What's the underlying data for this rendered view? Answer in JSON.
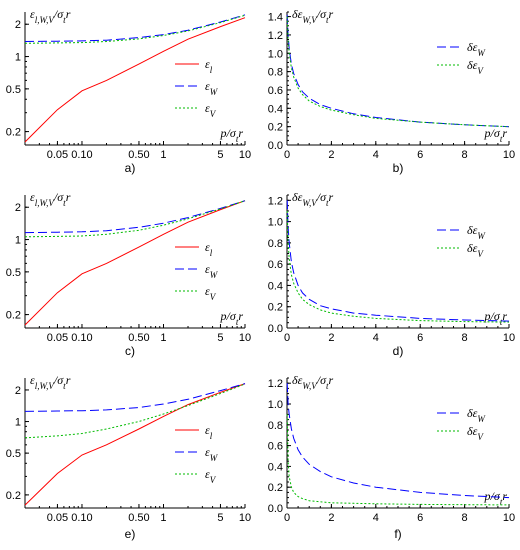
{
  "colors": {
    "eps_l": "#ff0000",
    "eps_W": "#0000ff",
    "eps_V": "#00bb00"
  },
  "chart_data": [
    {
      "panel": "a)",
      "type": "line",
      "xscale": "log",
      "yscale": "log",
      "title": "ε_{l,W,V}/σ_tr",
      "ylabel": "ε_{l,W,V}/σ_tr",
      "xlabel": "p/σ_tr",
      "xlim": [
        0.02,
        10
      ],
      "ylim": [
        0.15,
        2.6
      ],
      "xticks": [
        0.05,
        0.1,
        0.5,
        1,
        5,
        10
      ],
      "xticklabels": [
        "0.05",
        "0.10",
        "0.50",
        "1",
        "5",
        "10"
      ],
      "yticks": [
        0.2,
        0.5,
        1,
        2
      ],
      "yticklabels": [
        "0.2",
        "0.5",
        "1",
        "2"
      ],
      "legend": [
        "ε_l",
        "ε_W",
        "ε_V"
      ],
      "legend_position": "right",
      "series": [
        {
          "name": "ε_l",
          "color": "eps_l",
          "dash": "solid",
          "x": [
            0.02,
            0.05,
            0.1,
            0.2,
            0.5,
            1,
            2,
            5,
            10
          ],
          "y": [
            0.16,
            0.32,
            0.48,
            0.6,
            0.85,
            1.12,
            1.45,
            1.9,
            2.3
          ]
        },
        {
          "name": "ε_W",
          "color": "eps_W",
          "dash": "longdash",
          "x": [
            0.02,
            0.05,
            0.1,
            0.2,
            0.5,
            1,
            2,
            5,
            10
          ],
          "y": [
            1.38,
            1.39,
            1.4,
            1.42,
            1.5,
            1.6,
            1.76,
            2.1,
            2.45
          ]
        },
        {
          "name": "ε_V",
          "color": "eps_V",
          "dash": "dotted",
          "x": [
            0.02,
            0.05,
            0.1,
            0.2,
            0.5,
            1,
            2,
            5,
            10
          ],
          "y": [
            1.33,
            1.34,
            1.35,
            1.38,
            1.46,
            1.57,
            1.73,
            2.07,
            2.42
          ]
        }
      ]
    },
    {
      "panel": "b)",
      "type": "line",
      "xscale": "linear",
      "yscale": "linear",
      "title": "δε_{W,V}/σ_tr",
      "ylabel": "δε_{W,V}/σ_tr",
      "xlabel": "p/σ_tr",
      "xlim": [
        0,
        10
      ],
      "ylim": [
        0,
        1.45
      ],
      "xticks": [
        0,
        2,
        4,
        6,
        8,
        10
      ],
      "xticklabels": [
        "0",
        "2",
        "4",
        "6",
        "8",
        "10"
      ],
      "yticks": [
        0,
        0.2,
        0.4,
        0.6,
        0.8,
        1.0,
        1.2,
        1.4
      ],
      "yticklabels": [
        "0.0",
        "0.2",
        "0.4",
        "0.6",
        "0.8",
        "1.0",
        "1.2",
        "1.4"
      ],
      "legend": [
        "δε_W",
        "δε_V"
      ],
      "legend_position": "top-right",
      "series": [
        {
          "name": "δε_W",
          "color": "eps_W",
          "dash": "longdash",
          "x": [
            0.01,
            0.05,
            0.1,
            0.2,
            0.3,
            0.5,
            0.7,
            1,
            1.5,
            2,
            3,
            4,
            6,
            8,
            10
          ],
          "y": [
            1.42,
            1.2,
            1.05,
            0.88,
            0.78,
            0.66,
            0.58,
            0.51,
            0.44,
            0.4,
            0.34,
            0.3,
            0.25,
            0.22,
            0.2
          ]
        },
        {
          "name": "δε_V",
          "color": "eps_V",
          "dash": "dotted",
          "x": [
            0.01,
            0.05,
            0.1,
            0.2,
            0.3,
            0.5,
            0.7,
            1,
            1.5,
            2,
            3,
            4,
            6,
            8,
            10
          ],
          "y": [
            1.4,
            1.15,
            1.0,
            0.84,
            0.74,
            0.62,
            0.55,
            0.48,
            0.42,
            0.38,
            0.33,
            0.29,
            0.25,
            0.22,
            0.2
          ]
        }
      ]
    },
    {
      "panel": "c)",
      "type": "line",
      "xscale": "log",
      "yscale": "log",
      "title": "ε_{l,W,V}/σ_tr",
      "ylabel": "ε_{l,W,V}/σ_tr",
      "xlabel": "p/σ_tr",
      "xlim": [
        0.02,
        10
      ],
      "ylim": [
        0.15,
        2.6
      ],
      "xticks": [
        0.05,
        0.1,
        0.5,
        1,
        5,
        10
      ],
      "xticklabels": [
        "0.05",
        "0.10",
        "0.50",
        "1",
        "5",
        "10"
      ],
      "yticks": [
        0.2,
        0.5,
        1,
        2
      ],
      "yticklabels": [
        "0.2",
        "0.5",
        "1",
        "2"
      ],
      "legend": [
        "ε_l",
        "ε_W",
        "ε_V"
      ],
      "legend_position": "right",
      "series": [
        {
          "name": "ε_l",
          "color": "eps_l",
          "dash": "solid",
          "x": [
            0.02,
            0.05,
            0.1,
            0.2,
            0.5,
            1,
            2,
            5,
            10
          ],
          "y": [
            0.16,
            0.32,
            0.48,
            0.6,
            0.85,
            1.12,
            1.45,
            1.9,
            2.3
          ]
        },
        {
          "name": "ε_W",
          "color": "eps_W",
          "dash": "longdash",
          "x": [
            0.02,
            0.05,
            0.1,
            0.2,
            0.5,
            1,
            2,
            5,
            10
          ],
          "y": [
            1.16,
            1.17,
            1.18,
            1.21,
            1.3,
            1.42,
            1.6,
            1.95,
            2.3
          ]
        },
        {
          "name": "ε_V",
          "color": "eps_V",
          "dash": "dotted",
          "x": [
            0.02,
            0.05,
            0.1,
            0.2,
            0.5,
            1,
            2,
            5,
            10
          ],
          "y": [
            1.06,
            1.07,
            1.08,
            1.12,
            1.22,
            1.36,
            1.56,
            1.93,
            2.3
          ]
        }
      ]
    },
    {
      "panel": "d)",
      "type": "line",
      "xscale": "linear",
      "yscale": "linear",
      "title": "δε_{W,V}/σ_tr",
      "ylabel": "δε_{W,V}/σ_tr",
      "xlabel": "p/σ_tr",
      "xlim": [
        0,
        10
      ],
      "ylim": [
        0,
        1.25
      ],
      "xticks": [
        0,
        2,
        4,
        6,
        8,
        10
      ],
      "xticklabels": [
        "0",
        "2",
        "4",
        "6",
        "8",
        "10"
      ],
      "yticks": [
        0,
        0.2,
        0.4,
        0.6,
        0.8,
        1.0,
        1.2
      ],
      "yticklabels": [
        "0.0",
        "0.2",
        "0.4",
        "0.6",
        "0.8",
        "1.0",
        "1.2"
      ],
      "legend": [
        "δε_W",
        "δε_V"
      ],
      "legend_position": "top-right",
      "series": [
        {
          "name": "δε_W",
          "color": "eps_W",
          "dash": "longdash",
          "x": [
            0.01,
            0.05,
            0.1,
            0.2,
            0.3,
            0.5,
            0.7,
            1,
            1.5,
            2,
            3,
            4,
            6,
            8,
            10
          ],
          "y": [
            1.2,
            0.95,
            0.8,
            0.62,
            0.52,
            0.4,
            0.33,
            0.27,
            0.21,
            0.18,
            0.14,
            0.12,
            0.09,
            0.075,
            0.065
          ]
        },
        {
          "name": "δε_V",
          "color": "eps_V",
          "dash": "dotted",
          "x": [
            0.01,
            0.05,
            0.1,
            0.2,
            0.3,
            0.5,
            0.7,
            1,
            1.5,
            2,
            3,
            4,
            6,
            8,
            10
          ],
          "y": [
            1.1,
            0.8,
            0.65,
            0.5,
            0.42,
            0.33,
            0.27,
            0.22,
            0.17,
            0.14,
            0.11,
            0.09,
            0.07,
            0.06,
            0.055
          ]
        }
      ]
    },
    {
      "panel": "e)",
      "type": "line",
      "xscale": "log",
      "yscale": "log",
      "title": "ε_{l,W,V}/σ_tr",
      "ylabel": "ε_{l,W,V}/σ_tr",
      "xlabel": "",
      "xlim": [
        0.02,
        10
      ],
      "ylim": [
        0.15,
        2.6
      ],
      "xticks": [
        0.05,
        0.1,
        0.5,
        1,
        5,
        10
      ],
      "xticklabels": [
        "0.05",
        "0.10",
        "0.50",
        "1",
        "5",
        "10"
      ],
      "yticks": [
        0.2,
        0.5,
        1,
        2
      ],
      "yticklabels": [
        "0.2",
        "0.5",
        "1",
        "2"
      ],
      "legend": [
        "ε_l",
        "ε_W",
        "ε_V"
      ],
      "legend_position": "right",
      "series": [
        {
          "name": "ε_l",
          "color": "eps_l",
          "dash": "solid",
          "x": [
            0.02,
            0.05,
            0.1,
            0.2,
            0.5,
            1,
            2,
            5,
            10
          ],
          "y": [
            0.16,
            0.32,
            0.48,
            0.6,
            0.85,
            1.12,
            1.45,
            1.9,
            2.3
          ]
        },
        {
          "name": "ε_W",
          "color": "eps_W",
          "dash": "longdash",
          "x": [
            0.02,
            0.05,
            0.1,
            0.2,
            0.5,
            1,
            2,
            5,
            10
          ],
          "y": [
            1.25,
            1.26,
            1.27,
            1.29,
            1.36,
            1.47,
            1.63,
            1.97,
            2.3
          ]
        },
        {
          "name": "ε_V",
          "color": "eps_V",
          "dash": "dotted",
          "x": [
            0.02,
            0.05,
            0.1,
            0.2,
            0.5,
            1,
            2,
            5,
            10
          ],
          "y": [
            0.7,
            0.73,
            0.77,
            0.85,
            1.0,
            1.18,
            1.42,
            1.85,
            2.28
          ]
        }
      ]
    },
    {
      "panel": "f)",
      "type": "line",
      "xscale": "linear",
      "yscale": "linear",
      "title": "δε_{W,V}/σ_tr",
      "ylabel": "δε_{W,V}/σ_tr",
      "xlabel": "p/σ_tr",
      "xlim": [
        0,
        10
      ],
      "ylim": [
        0,
        1.25
      ],
      "xticks": [
        0,
        2,
        4,
        6,
        8,
        10
      ],
      "xticklabels": [
        "0",
        "2",
        "4",
        "6",
        "8",
        "10"
      ],
      "yticks": [
        0,
        0.2,
        0.4,
        0.6,
        0.8,
        1.0,
        1.2
      ],
      "yticklabels": [
        "0.0",
        "0.2",
        "0.4",
        "0.6",
        "0.8",
        "1.0",
        "1.2"
      ],
      "legend": [
        "δε_W",
        "δε_V"
      ],
      "legend_position": "top-right",
      "series": [
        {
          "name": "δε_W",
          "color": "eps_W",
          "dash": "longdash",
          "x": [
            0.01,
            0.05,
            0.1,
            0.2,
            0.3,
            0.5,
            0.7,
            1,
            1.5,
            2,
            3,
            4,
            6,
            8,
            10
          ],
          "y": [
            1.2,
            1.0,
            0.9,
            0.76,
            0.67,
            0.56,
            0.49,
            0.42,
            0.35,
            0.3,
            0.24,
            0.2,
            0.15,
            0.12,
            0.1
          ]
        },
        {
          "name": "δε_V",
          "color": "eps_V",
          "dash": "dotted",
          "x": [
            0.01,
            0.05,
            0.1,
            0.2,
            0.3,
            0.5,
            0.7,
            1,
            1.5,
            2,
            3,
            4,
            6,
            8,
            10
          ],
          "y": [
            0.9,
            0.45,
            0.3,
            0.2,
            0.15,
            0.11,
            0.09,
            0.07,
            0.06,
            0.05,
            0.045,
            0.04,
            0.035,
            0.032,
            0.03
          ]
        }
      ]
    }
  ]
}
